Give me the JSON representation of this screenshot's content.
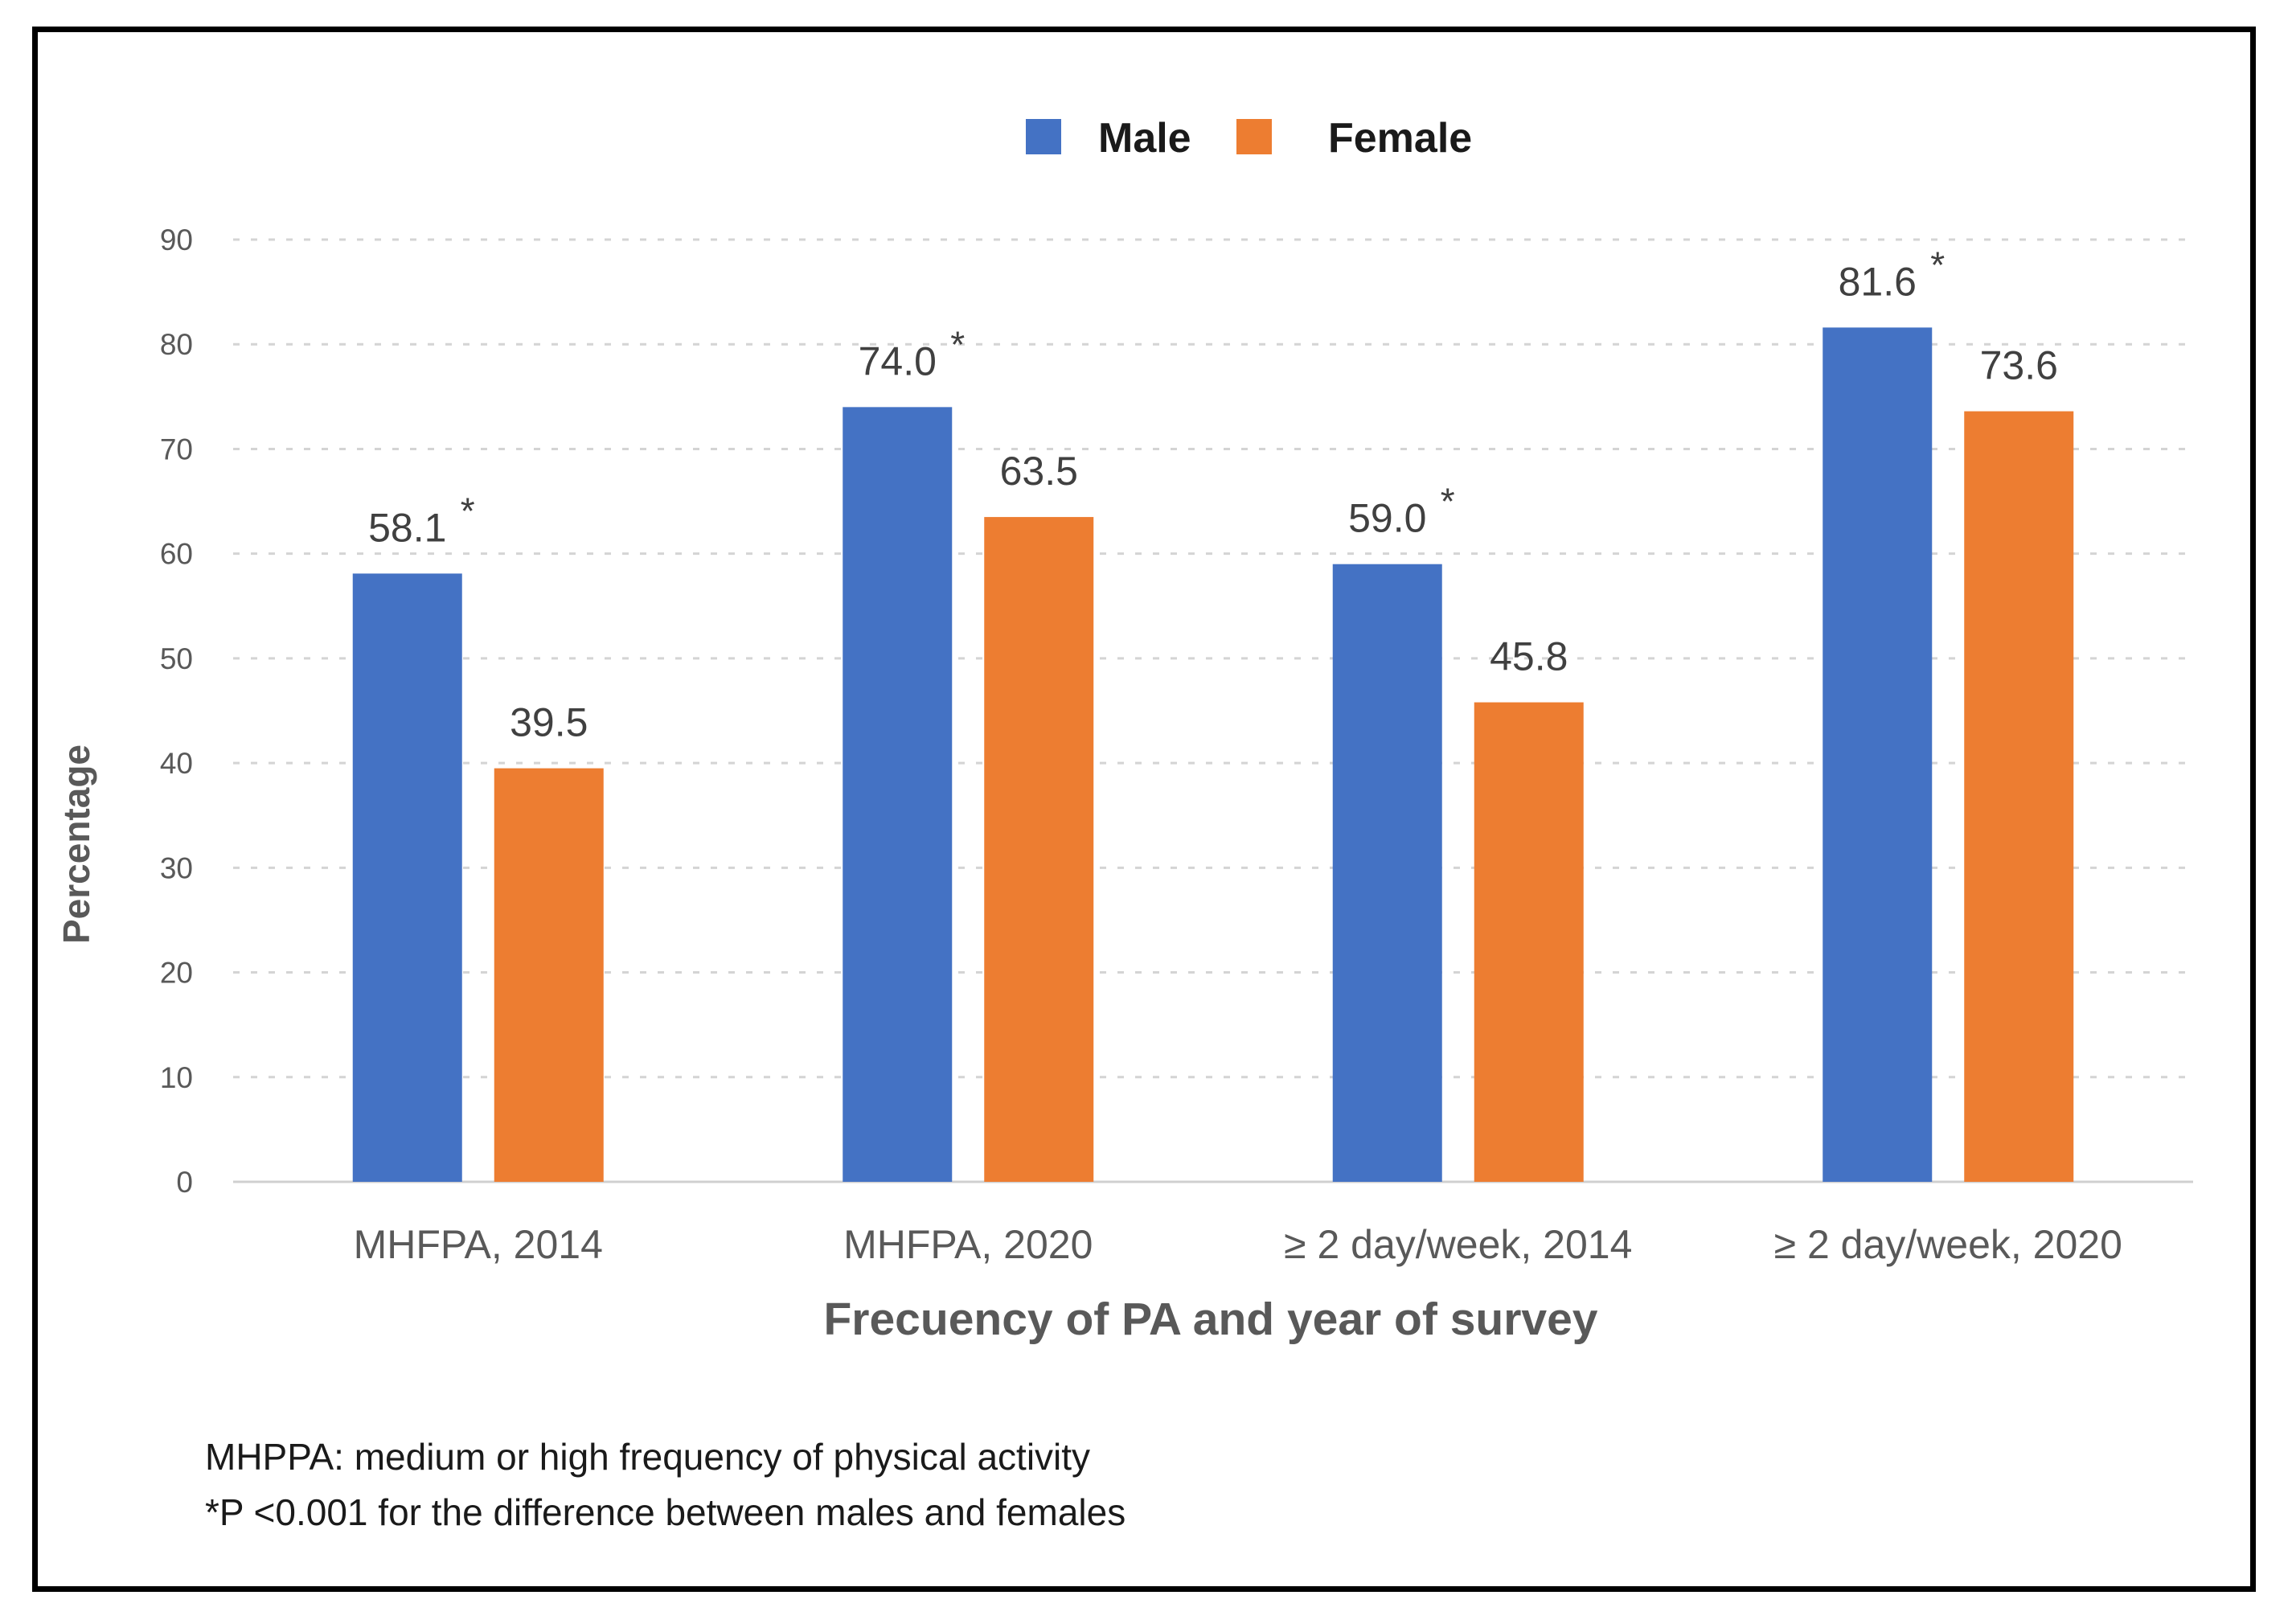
{
  "chart_data": {
    "type": "bar",
    "title": "",
    "xlabel": "Frecuency of PA and year of survey",
    "ylabel": "Percentage",
    "ylim": [
      0,
      90
    ],
    "yticks": [
      "0",
      "10",
      "20",
      "30",
      "40",
      "50",
      "60",
      "70",
      "80",
      "90"
    ],
    "grid": true,
    "legend_position": "top-center",
    "categories": [
      "MHFPA, 2014",
      "MHFPA, 2020",
      "≥ 2 day/week, 2014",
      "≥ 2 day/week, 2020"
    ],
    "series": [
      {
        "name": "Male",
        "color": "#4472C4",
        "values": [
          58.1,
          74.0,
          59.0,
          81.6
        ],
        "labels": [
          "58.1",
          "74.0",
          "59.0",
          "81.6"
        ],
        "significance": [
          "*",
          "*",
          "*",
          "*"
        ]
      },
      {
        "name": "Female",
        "color": "#ED7D31",
        "values": [
          39.5,
          63.5,
          45.8,
          73.6
        ],
        "labels": [
          "39.5",
          "63.5",
          "45.8",
          "73.6"
        ],
        "significance": [
          "",
          "",
          "",
          ""
        ]
      }
    ]
  },
  "footnotes": [
    "MHPPA: medium or high frequency of physical activity",
    "*P <0.001 for the difference between males and females"
  ]
}
